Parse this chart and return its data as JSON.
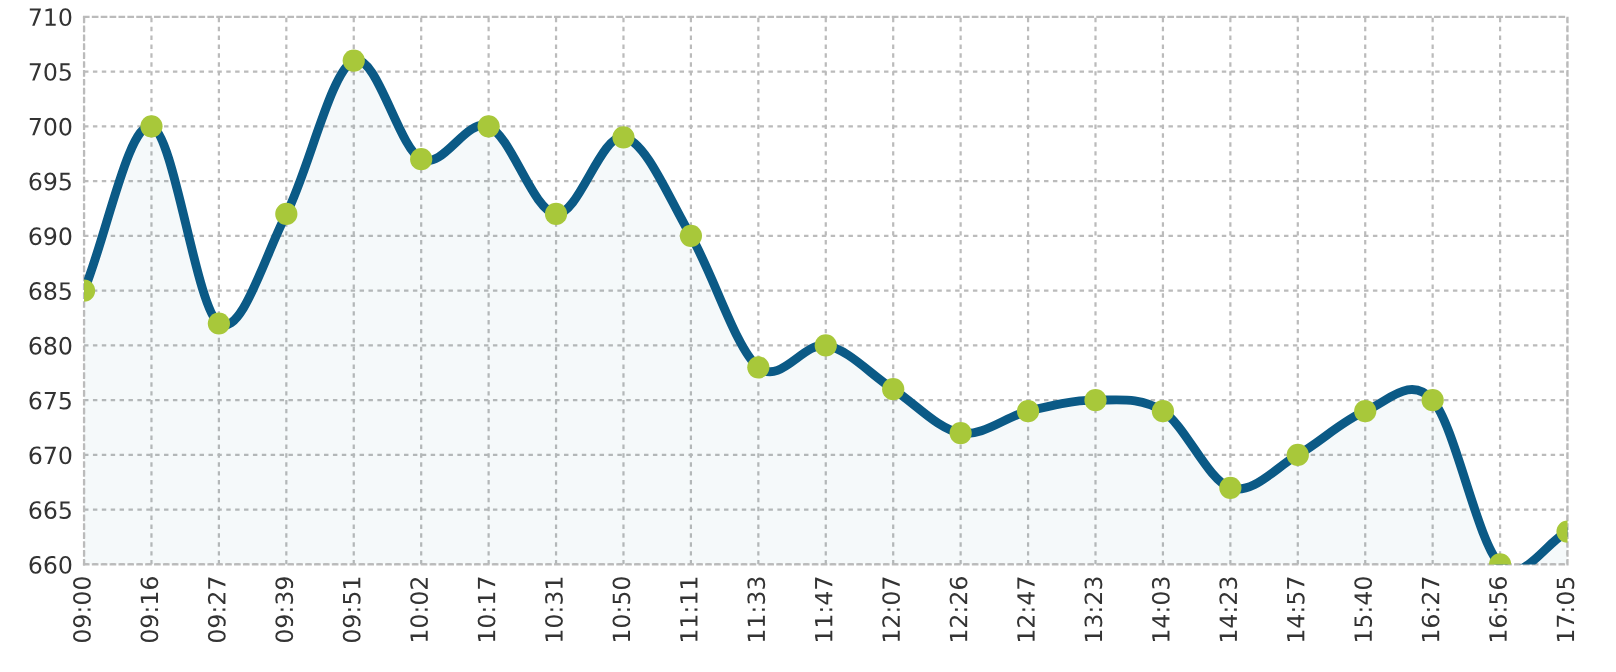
{
  "chart_data": {
    "type": "area",
    "categories": [
      "09:00",
      "09:16",
      "09:27",
      "09:39",
      "09:51",
      "10:02",
      "10:17",
      "10:31",
      "10:50",
      "11:11",
      "11:33",
      "11:47",
      "12:07",
      "12:26",
      "12:47",
      "13:23",
      "14:03",
      "14:23",
      "14:57",
      "15:40",
      "16:27",
      "16:56",
      "17:05"
    ],
    "series": [
      {
        "color": "#0b5a86",
        "colors": [
          "#a8c83a",
          "#a8c83a",
          "#a8c83a",
          "#a8c83a",
          "#a8c83a",
          "#a8c83a",
          "#a8c83a",
          "#a8c83a",
          "#a8c83a",
          "#a8c83a",
          "#a8c83a",
          "#a8c83a",
          "#a8c83a",
          "#a8c83a",
          "#a8c83a",
          "#a8c83a",
          "#a8c83a",
          "#a8c83a",
          "#a8c83a",
          "#a8c83a",
          "#a8c83a",
          "#a8c83a",
          "#a8c83a"
        ],
        "values": [
          685,
          700,
          682,
          692,
          706,
          697,
          700,
          692,
          699,
          690,
          678,
          680,
          676,
          672,
          674,
          675,
          674,
          667,
          670,
          674,
          675,
          660,
          663
        ]
      }
    ],
    "ylim": [
      660,
      710
    ],
    "yticks": [
      660,
      665,
      670,
      675,
      680,
      685,
      690,
      695,
      700,
      705,
      710
    ],
    "grid": true,
    "marker": "circle",
    "line_style": "solid"
  }
}
